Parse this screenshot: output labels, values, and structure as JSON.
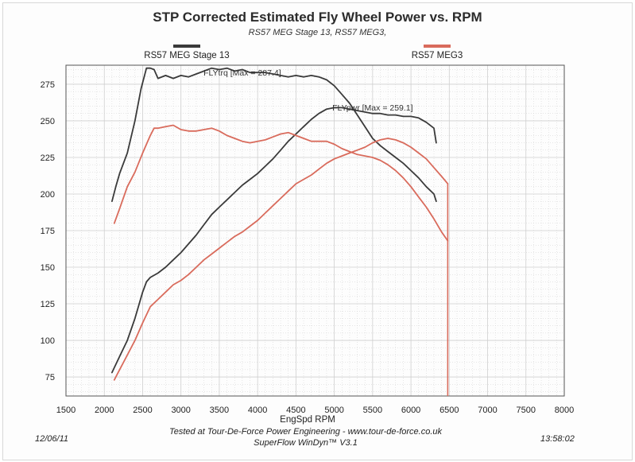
{
  "colors": {
    "series1": "#3a3a3a",
    "series2": "#d96b5c",
    "grid_minor": "#cfcfcf",
    "plot_border": "#555555"
  },
  "chart_data": {
    "type": "line",
    "title": "STP Corrected Estimated Fly Wheel Power vs. RPM",
    "subtitle": "RS57 MEG Stage 13, RS57 MEG3,",
    "xlabel": "EngSpd RPM",
    "ylabel": "",
    "xlim": [
      1500,
      8000
    ],
    "ylim": [
      62,
      288
    ],
    "x_ticks": [
      1500,
      2000,
      2500,
      3000,
      3500,
      4000,
      4500,
      5000,
      5500,
      6000,
      6500,
      7000,
      7500,
      8000
    ],
    "y_ticks": [
      75,
      100,
      125,
      150,
      175,
      200,
      225,
      250,
      275
    ],
    "grid": true,
    "legend": "top",
    "annotations": [
      {
        "text": "FLYtrq [Max = 287.4]",
        "x": 3800,
        "y": 281
      },
      {
        "text": "FLYpwr [Max = 259.1]",
        "x": 5500,
        "y": 257
      }
    ],
    "series": [
      {
        "name": "RS57 MEG Stage 13",
        "color": "#3a3a3a",
        "curves": [
          {
            "label": "FLYtrq",
            "x": [
              2100,
              2150,
              2200,
              2300,
              2400,
              2480,
              2550,
              2600,
              2650,
              2700,
              2800,
              2900,
              3000,
              3100,
              3200,
              3300,
              3400,
              3500,
              3600,
              3700,
              3800,
              3900,
              4000,
              4100,
              4200,
              4300,
              4400,
              4500,
              4600,
              4700,
              4800,
              4900,
              5000,
              5100,
              5200,
              5300,
              5400,
              5500,
              5600,
              5700,
              5800,
              5900,
              6000,
              6100,
              6200,
              6300,
              6330
            ],
            "y": [
              195,
              205,
              214,
              228,
              250,
              272,
              286,
              286,
              285,
              279,
              281,
              279,
              281,
              280,
              282,
              284,
              286,
              285,
              286,
              284,
              285,
              283,
              283,
              283,
              282,
              281,
              280,
              281,
              280,
              281,
              280,
              278,
              274,
              268,
              262,
              254,
              246,
              238,
              233,
              229,
              225,
              221,
              216,
              211,
              205,
              200,
              195
            ]
          },
          {
            "label": "FLYpwr",
            "x": [
              2100,
              2200,
              2300,
              2400,
              2500,
              2550,
              2600,
              2700,
              2800,
              2900,
              3000,
              3100,
              3200,
              3300,
              3400,
              3500,
              3600,
              3700,
              3800,
              3900,
              4000,
              4100,
              4200,
              4300,
              4400,
              4500,
              4600,
              4700,
              4800,
              4900,
              5000,
              5100,
              5200,
              5300,
              5400,
              5500,
              5600,
              5700,
              5800,
              5900,
              6000,
              6100,
              6200,
              6300,
              6330
            ],
            "y": [
              78,
              89,
              100,
              115,
              133,
              140,
              143,
              146,
              150,
              155,
              160,
              166,
              172,
              179,
              186,
              191,
              196,
              201,
              206,
              210,
              214,
              219,
              224,
              230,
              236,
              241,
              246,
              251,
              255,
              258,
              259,
              259,
              258,
              257,
              256,
              255,
              255,
              254,
              254,
              253,
              253,
              252,
              249,
              245,
              235
            ]
          }
        ]
      },
      {
        "name": "RS57 MEG3",
        "color": "#d96b5c",
        "curves": [
          {
            "label": "FLYtrq",
            "x": [
              2130,
              2200,
              2300,
              2400,
              2500,
              2600,
              2650,
              2700,
              2800,
              2900,
              3000,
              3100,
              3200,
              3300,
              3400,
              3500,
              3600,
              3700,
              3800,
              3900,
              4000,
              4100,
              4200,
              4300,
              4400,
              4500,
              4600,
              4700,
              4800,
              4900,
              5000,
              5100,
              5200,
              5300,
              5400,
              5500,
              5600,
              5700,
              5800,
              5900,
              6000,
              6100,
              6200,
              6300,
              6400,
              6480
            ],
            "y": [
              180,
              190,
              205,
              215,
              228,
              240,
              245,
              245,
              246,
              247,
              244,
              243,
              243,
              244,
              245,
              243,
              240,
              238,
              236,
              235,
              236,
              237,
              239,
              241,
              242,
              240,
              238,
              236,
              236,
              236,
              234,
              231,
              229,
              227,
              226,
              225,
              223,
              220,
              216,
              211,
              205,
              198,
              191,
              183,
              174,
              168
            ]
          },
          {
            "label": "FLYpwr",
            "x": [
              2130,
              2200,
              2300,
              2400,
              2500,
              2600,
              2700,
              2800,
              2900,
              3000,
              3100,
              3200,
              3300,
              3400,
              3500,
              3600,
              3700,
              3800,
              3900,
              4000,
              4100,
              4200,
              4300,
              4400,
              4500,
              4600,
              4700,
              4800,
              4900,
              5000,
              5100,
              5200,
              5300,
              5400,
              5500,
              5600,
              5700,
              5800,
              5900,
              6000,
              6100,
              6200,
              6300,
              6400,
              6480
            ],
            "y": [
              73,
              80,
              90,
              100,
              112,
              123,
              128,
              133,
              138,
              141,
              145,
              150,
              155,
              159,
              163,
              167,
              171,
              174,
              178,
              182,
              187,
              192,
              197,
              202,
              207,
              210,
              213,
              217,
              221,
              224,
              226,
              228,
              230,
              232,
              235,
              237,
              238,
              237,
              235,
              232,
              228,
              224,
              218,
              212,
              207
            ]
          }
        ]
      }
    ]
  },
  "footer": {
    "date": "12/06/11",
    "tested_at": "Tested at Tour-De-Force Power Engineering - www.tour-de-force.co.uk",
    "software": "SuperFlow WinDyn™ V3.1",
    "time": "13:58:02"
  }
}
